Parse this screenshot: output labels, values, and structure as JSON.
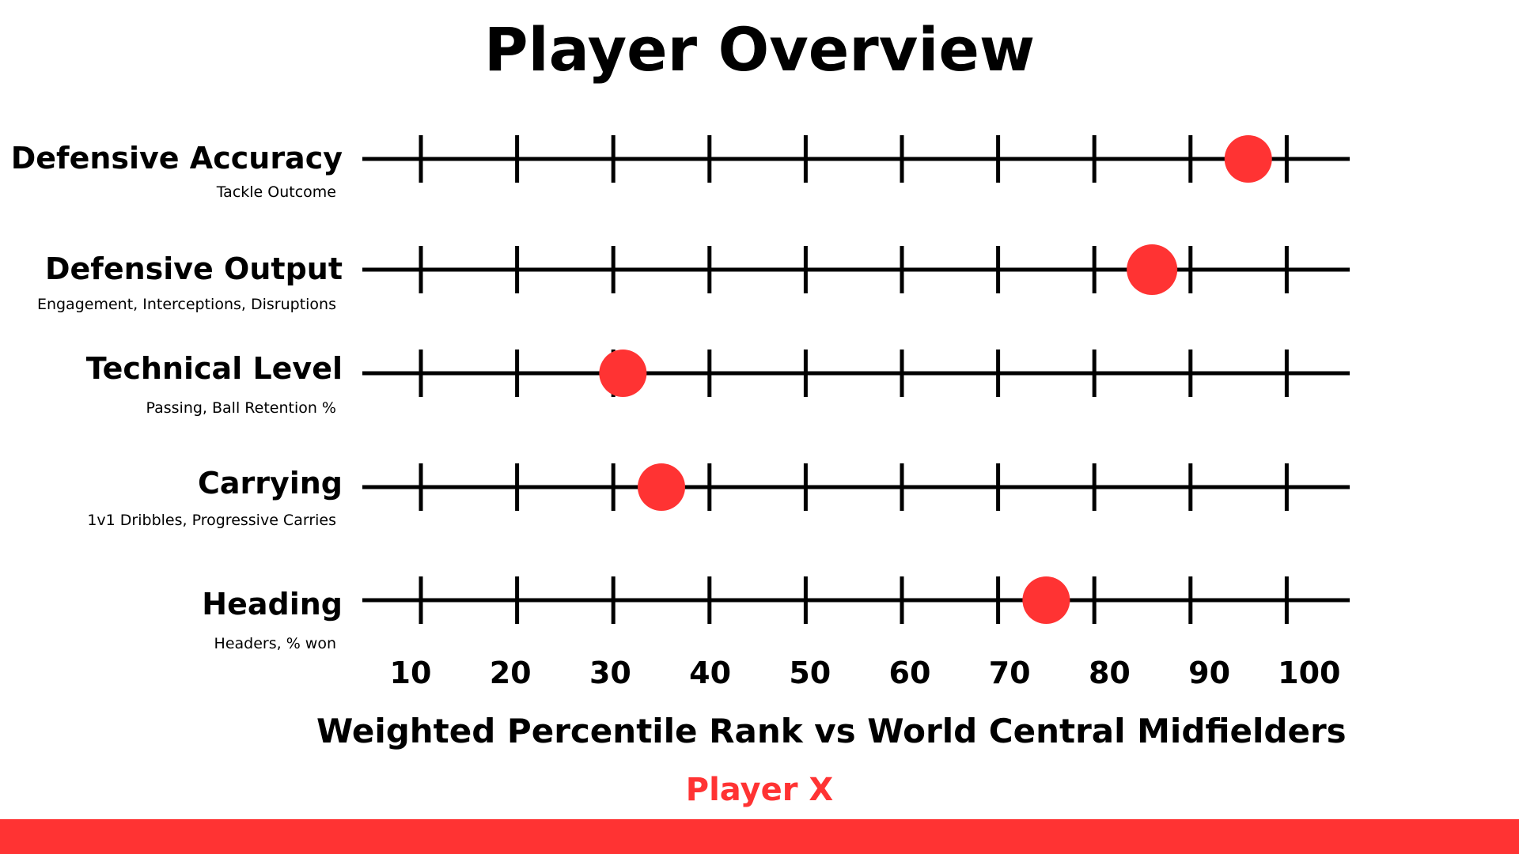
{
  "chart_data": {
    "type": "scatter",
    "title": "Player Overview",
    "xlabel": "Weighted Percentile Rank vs World Central Midfielders",
    "player_label": "Player X",
    "x_ticks": [
      10,
      20,
      30,
      40,
      50,
      60,
      70,
      80,
      90,
      100
    ],
    "xlim": [
      10,
      100
    ],
    "grid": false,
    "categories": [
      {
        "label": "Defensive Accuracy",
        "sublabel": "Tackle Outcome",
        "value": 96
      },
      {
        "label": "Defensive Output",
        "sublabel": "Engagement, Interceptions, Disruptions",
        "value": 86
      },
      {
        "label": "Technical Level",
        "sublabel": "Passing, Ball Retention %",
        "value": 31
      },
      {
        "label": "Carrying",
        "sublabel": "1v1 Dribbles, Progressive Carries",
        "value": 35
      },
      {
        "label": "Heading",
        "sublabel": "Headers, % won",
        "value": 75
      }
    ]
  },
  "colors": {
    "marker": "#ff3333",
    "player_label": "#ff3333",
    "footer_bar": "#ff3333",
    "axis": "#000000"
  }
}
